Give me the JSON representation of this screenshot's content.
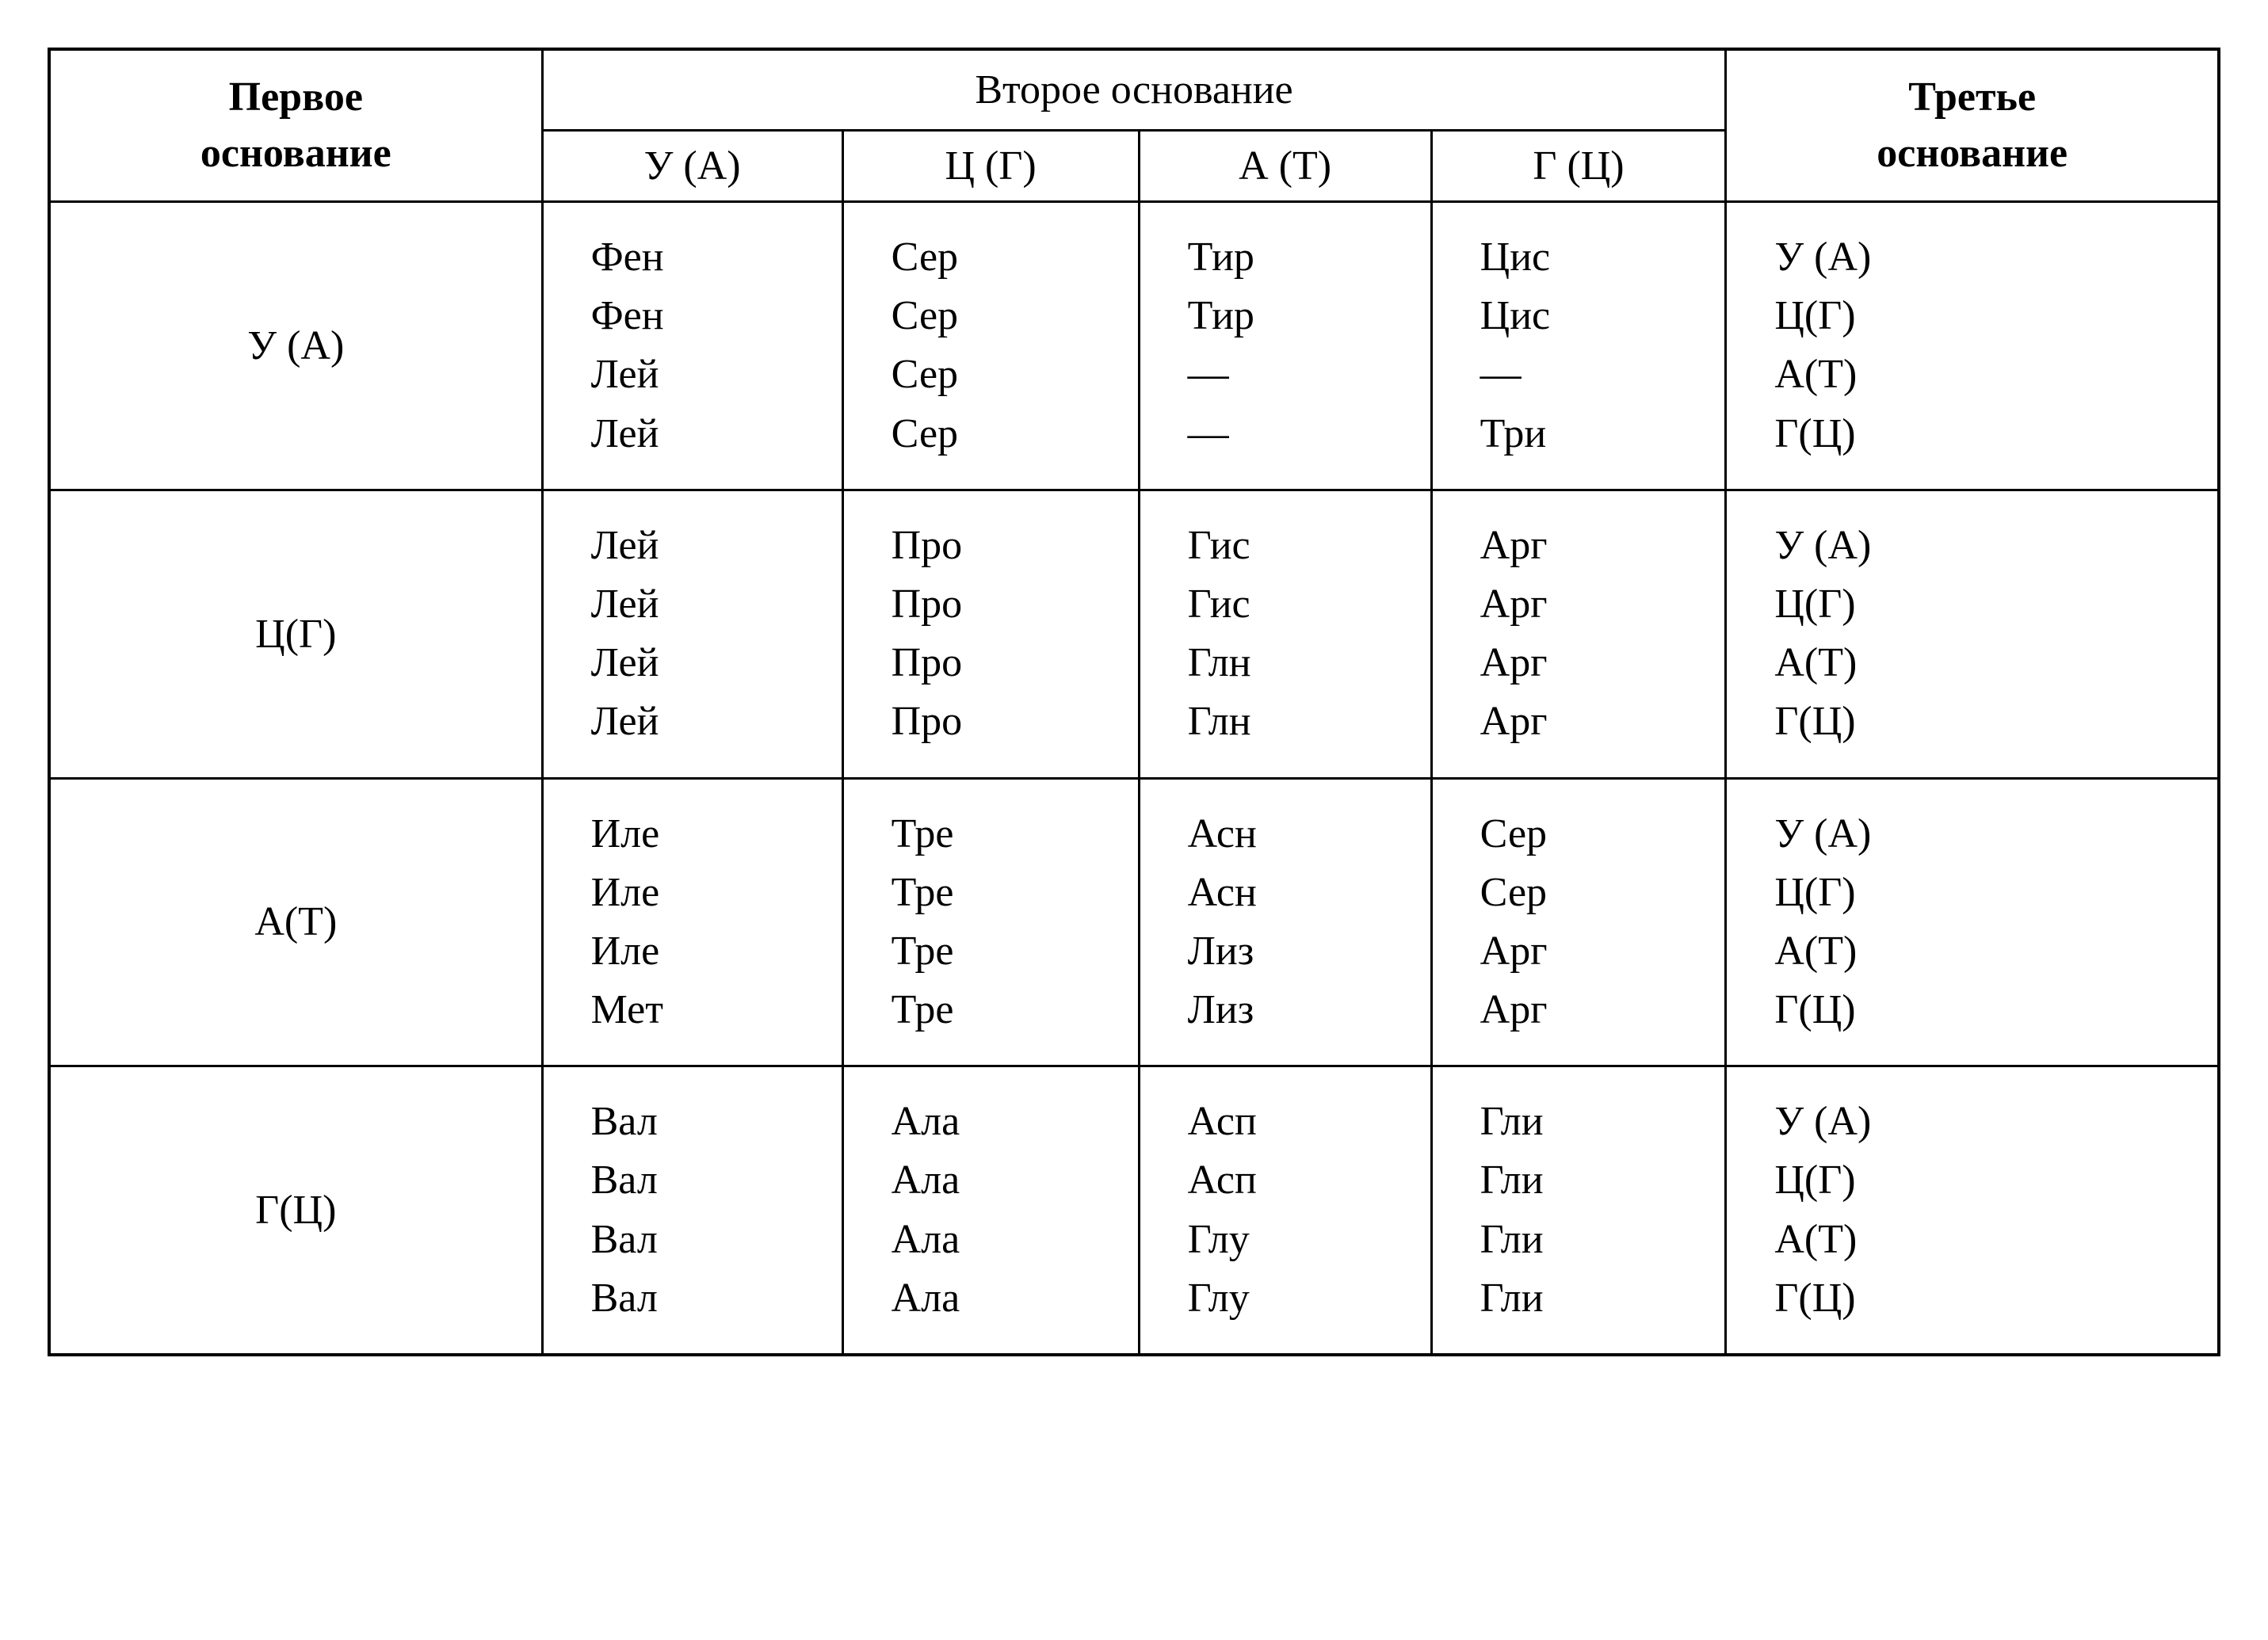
{
  "type": "table",
  "headers": {
    "first": "Первое\nоснование",
    "second": "Второе основание",
    "third": "Третье\nоснование",
    "sub": [
      "У  (А)",
      "Ц  (Г)",
      "А  (Т)",
      "Г  (Ц)"
    ]
  },
  "third_base": [
    "У (А)",
    "Ц(Г)",
    "А(Т)",
    "Г(Ц)"
  ],
  "rows": [
    {
      "label": "У (А)",
      "cols": [
        [
          "Фен",
          "Фен",
          "Лей",
          "Лей"
        ],
        [
          "Сер",
          "Сер",
          "Сер",
          "Сер"
        ],
        [
          "Тир",
          "Тир",
          "—",
          "—"
        ],
        [
          "Цис",
          "Цис",
          "—",
          "Три"
        ]
      ]
    },
    {
      "label": "Ц(Г)",
      "cols": [
        [
          "Лей",
          "Лей",
          "Лей",
          "Лей"
        ],
        [
          "Про",
          "Про",
          "Про",
          "Про"
        ],
        [
          "Гис",
          "Гис",
          "Глн",
          "Глн"
        ],
        [
          "Арг",
          "Арг",
          "Арг",
          "Арг"
        ]
      ]
    },
    {
      "label": "А(Т)",
      "cols": [
        [
          "Иле",
          "Иле",
          "Иле",
          "Мет"
        ],
        [
          "Тре",
          "Тре",
          "Тре",
          "Тре"
        ],
        [
          "Асн",
          "Асн",
          "Лиз",
          "Лиз"
        ],
        [
          "Сер",
          "Сер",
          "Арг",
          "Арг"
        ]
      ]
    },
    {
      "label": "Г(Ц)",
      "cols": [
        [
          "Вал",
          "Вал",
          "Вал",
          "Вал"
        ],
        [
          "Ала",
          "Ала",
          "Ала",
          "Ала"
        ],
        [
          "Асп",
          "Асп",
          "Глу",
          "Глу"
        ],
        [
          "Гли",
          "Гли",
          "Гли",
          "Гли"
        ]
      ]
    }
  ],
  "style": {
    "border_color": "#000000",
    "background_color": "#ffffff",
    "text_color": "#000000",
    "font_family": "Times New Roman",
    "body_fontsize": 52,
    "border_width_outer": 4,
    "border_width_inner": 3
  }
}
